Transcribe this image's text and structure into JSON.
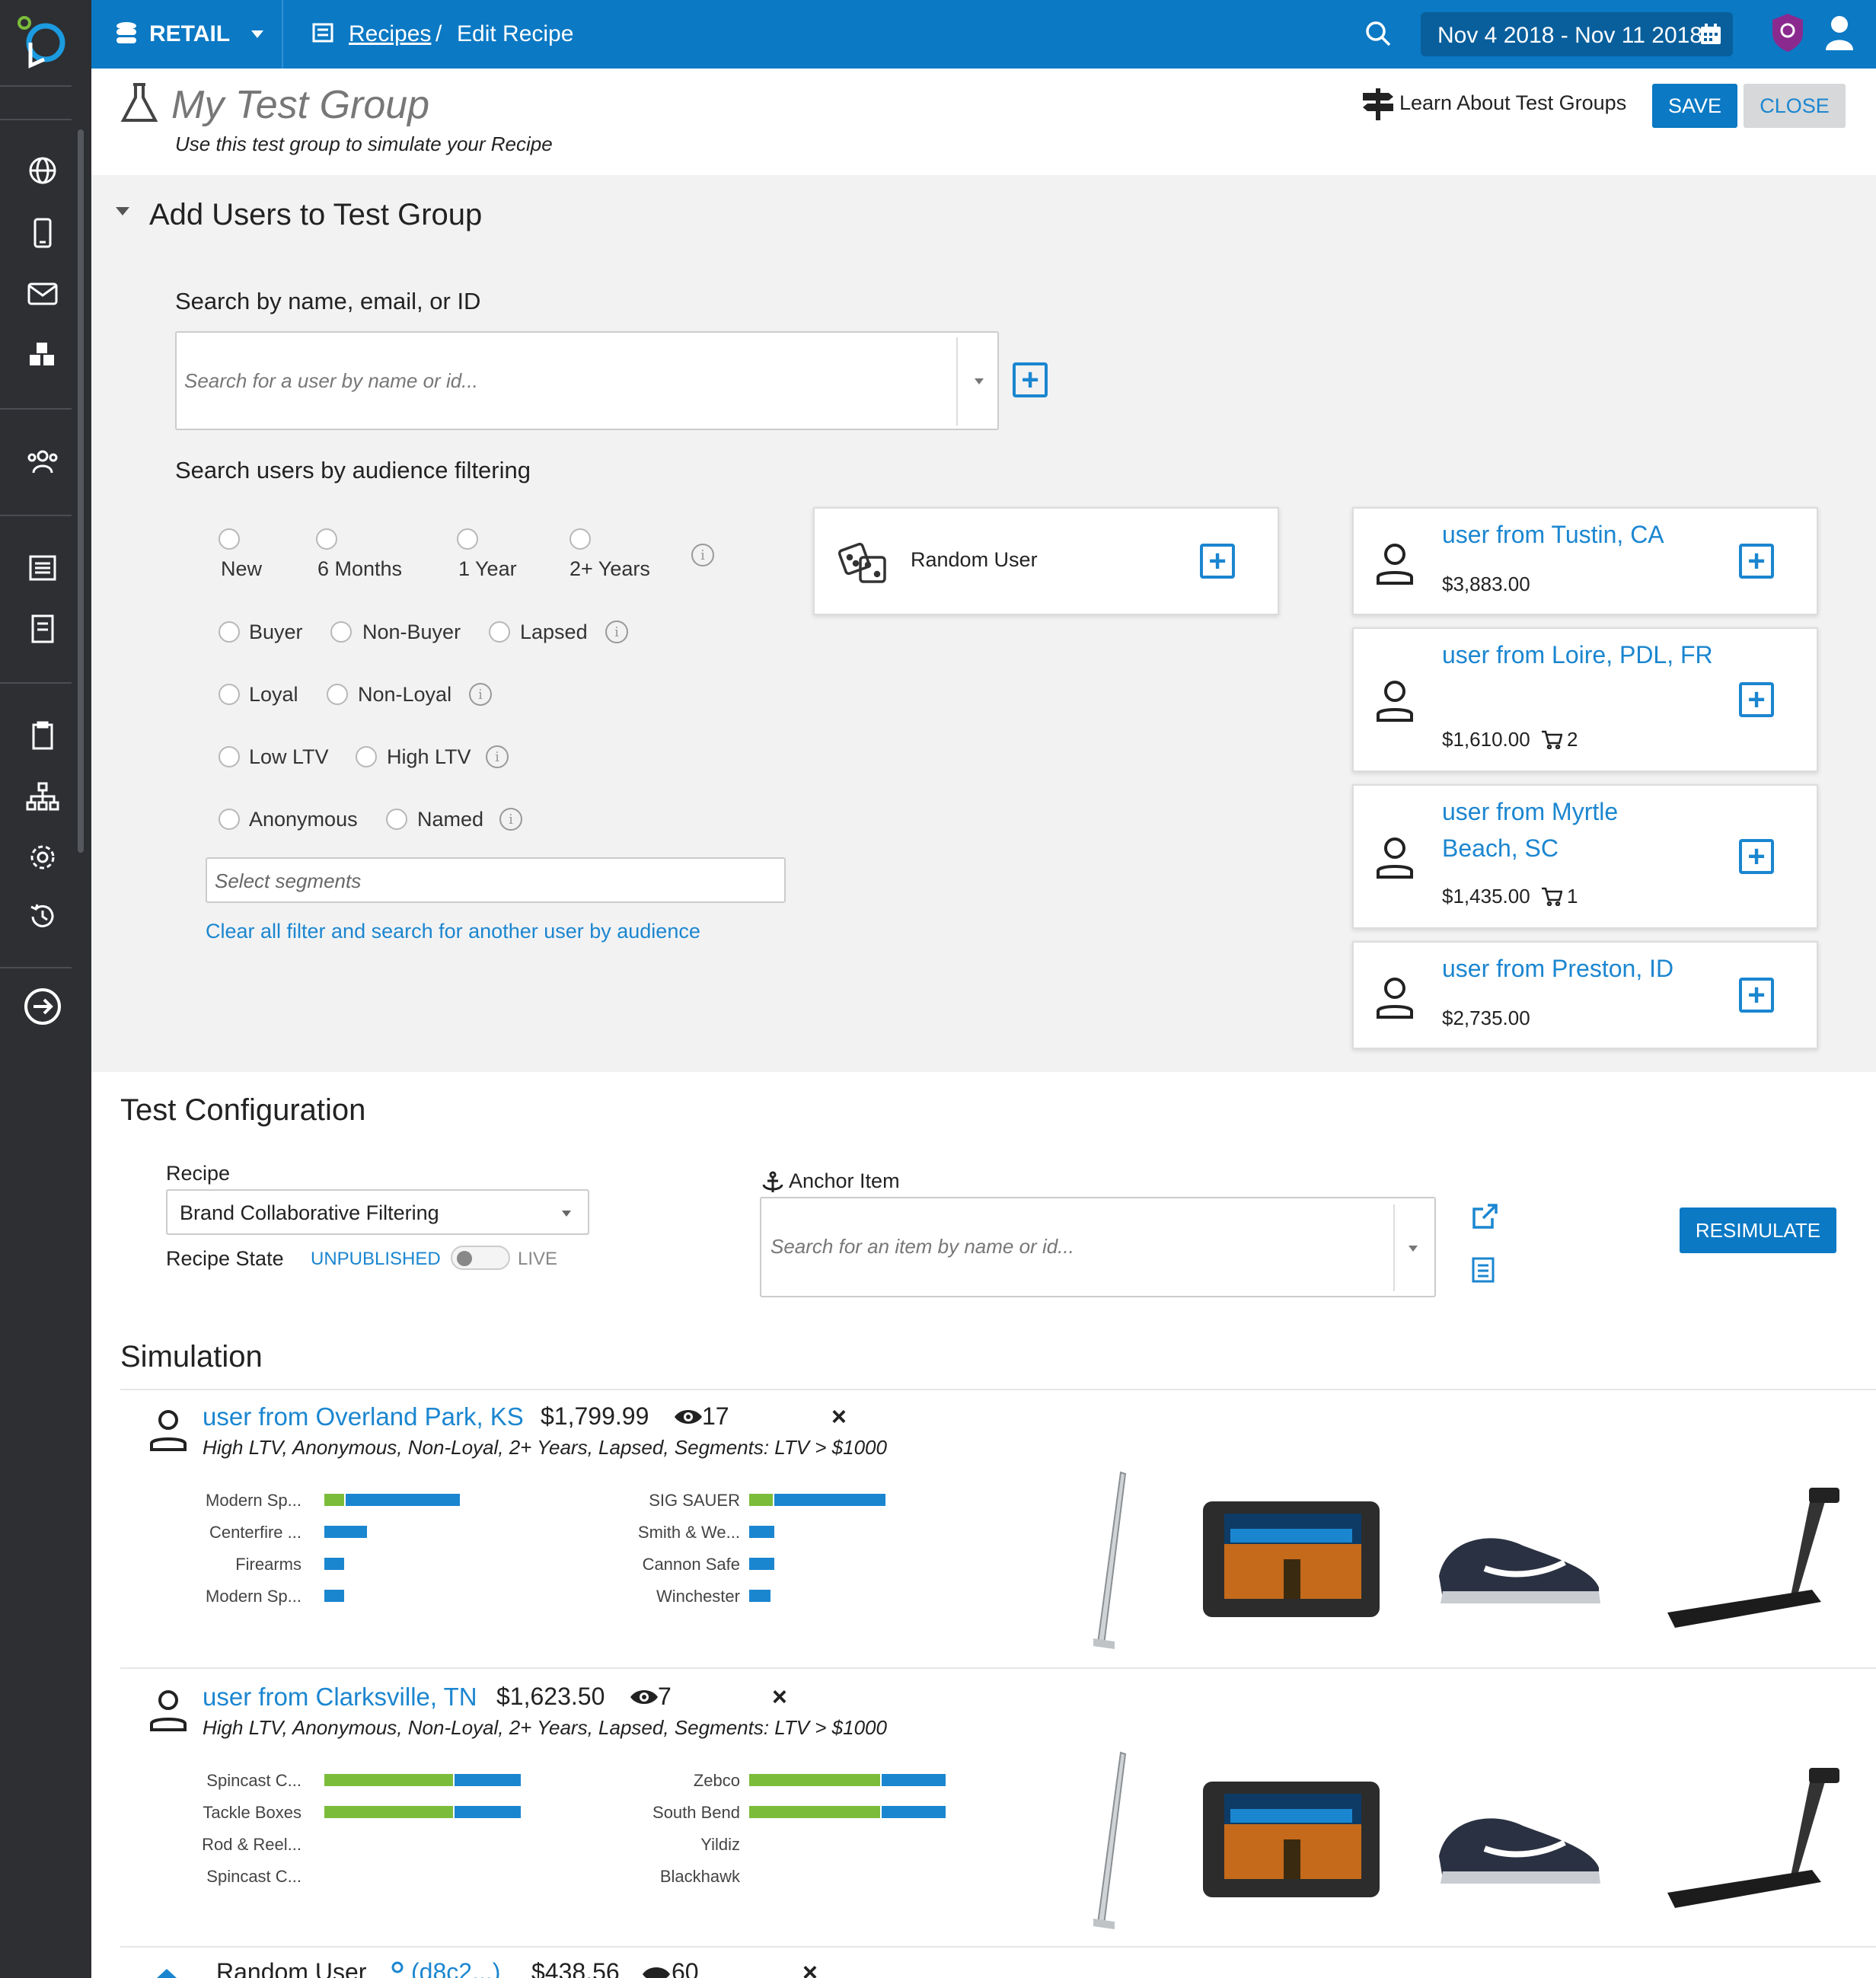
{
  "topbar": {
    "workspace": "RETAIL",
    "breadcrumb_link": "Recipes",
    "breadcrumb_sep": "/",
    "breadcrumb_current": "Edit Recipe",
    "date_range": "Nov 4 2018 - Nov 11 2018"
  },
  "header": {
    "title": "My Test Group",
    "subtitle": "Use this test group to simulate your Recipe",
    "learn_link": "Learn About Test Groups",
    "save_label": "SAVE",
    "close_label": "CLOSE"
  },
  "add_users": {
    "section_title": "Add Users to Test Group",
    "search_label": "Search by name, email, or ID",
    "search_placeholder": "Search for a user by name or id...",
    "audience_label": "Search users by audience filtering",
    "filters": {
      "tenure": [
        "New",
        "6 Months",
        "1 Year",
        "2+ Years"
      ],
      "purchase": [
        "Buyer",
        "Non-Buyer",
        "Lapsed"
      ],
      "loyalty": [
        "Loyal",
        "Non-Loyal"
      ],
      "ltv": [
        "Low LTV",
        "High LTV"
      ],
      "identity": [
        "Anonymous",
        "Named"
      ]
    },
    "segments_placeholder": "Select segments",
    "clear_link": "Clear all filter and search for another user by audience",
    "random_user_label": "Random User",
    "suggested_users": [
      {
        "name": "user from Tustin, CA",
        "amount": "$3,883.00",
        "cart": ""
      },
      {
        "name": "user from Loire, PDL, FR",
        "amount": "$1,610.00",
        "cart": "2"
      },
      {
        "name": "user from Myrtle Beach, SC",
        "amount": "$1,435.00",
        "cart": "1"
      },
      {
        "name": "user from Preston, ID",
        "amount": "$2,735.00",
        "cart": ""
      }
    ]
  },
  "config": {
    "section_title": "Test Configuration",
    "recipe_label": "Recipe",
    "recipe_value": "Brand Collaborative Filtering",
    "state_label": "Recipe State",
    "state_off": "UNPUBLISHED",
    "state_on": "LIVE",
    "anchor_label": "Anchor Item",
    "anchor_placeholder": "Search for an item by name or id...",
    "resimulate_label": "RESIMULATE"
  },
  "simulation": {
    "section_title": "Simulation",
    "rows": [
      {
        "name": "user from Overland Park, KS",
        "amount": "$1,799.99",
        "views": "17",
        "remove": "×",
        "tags": "High LTV, Anonymous, Non-Loyal, 2+ Years, Lapsed, Segments: LTV > $1000",
        "left_bars": [
          {
            "label": "Modern Sp...",
            "green": 0.1,
            "blue": 0.9
          },
          {
            "label": "Centerfire ...",
            "green": 0,
            "blue": 0.22
          },
          {
            "label": "Firearms",
            "green": 0,
            "blue": 0.1
          },
          {
            "label": "Modern Sp...",
            "green": 0,
            "blue": 0.1
          }
        ],
        "right_bars": [
          {
            "label": "SIG SAUER",
            "green": 0.12,
            "blue": 0.88
          },
          {
            "label": "Smith & We...",
            "green": 0,
            "blue": 0.13
          },
          {
            "label": "Cannon Safe",
            "green": 0,
            "blue": 0.13
          },
          {
            "label": "Winchester",
            "green": 0,
            "blue": 0.11
          }
        ]
      },
      {
        "name": "user from Clarksville, TN",
        "amount": "$1,623.50",
        "views": "7",
        "remove": "×",
        "tags": "High LTV, Anonymous, Non-Loyal, 2+ Years, Lapsed, Segments: LTV > $1000",
        "left_bars": [
          {
            "label": "Spincast C...",
            "green": 0.66,
            "blue": 0.34
          },
          {
            "label": "Tackle Boxes",
            "green": 0.66,
            "blue": 0.34
          },
          {
            "label": "Rod & Reel...",
            "green": 0,
            "blue": 0
          },
          {
            "label": "Spincast C...",
            "green": 0,
            "blue": 0
          }
        ],
        "right_bars": [
          {
            "label": "Zebco",
            "green": 0.67,
            "blue": 0.33
          },
          {
            "label": "South Bend",
            "green": 0.67,
            "blue": 0.33
          },
          {
            "label": "Yildiz",
            "green": 0,
            "blue": 0
          },
          {
            "label": "Blackhawk",
            "green": 0,
            "blue": 0
          }
        ]
      }
    ],
    "partial_row": {
      "name": "Random User",
      "id": "(d8c2...)",
      "amount": "$438.56",
      "views": "60",
      "remove": "×"
    }
  },
  "colors": {
    "brand_blue": "#0b79c4",
    "link_blue": "#1b86d0",
    "bar_green": "#7bbd3a",
    "sidebar": "#2d2f33"
  }
}
